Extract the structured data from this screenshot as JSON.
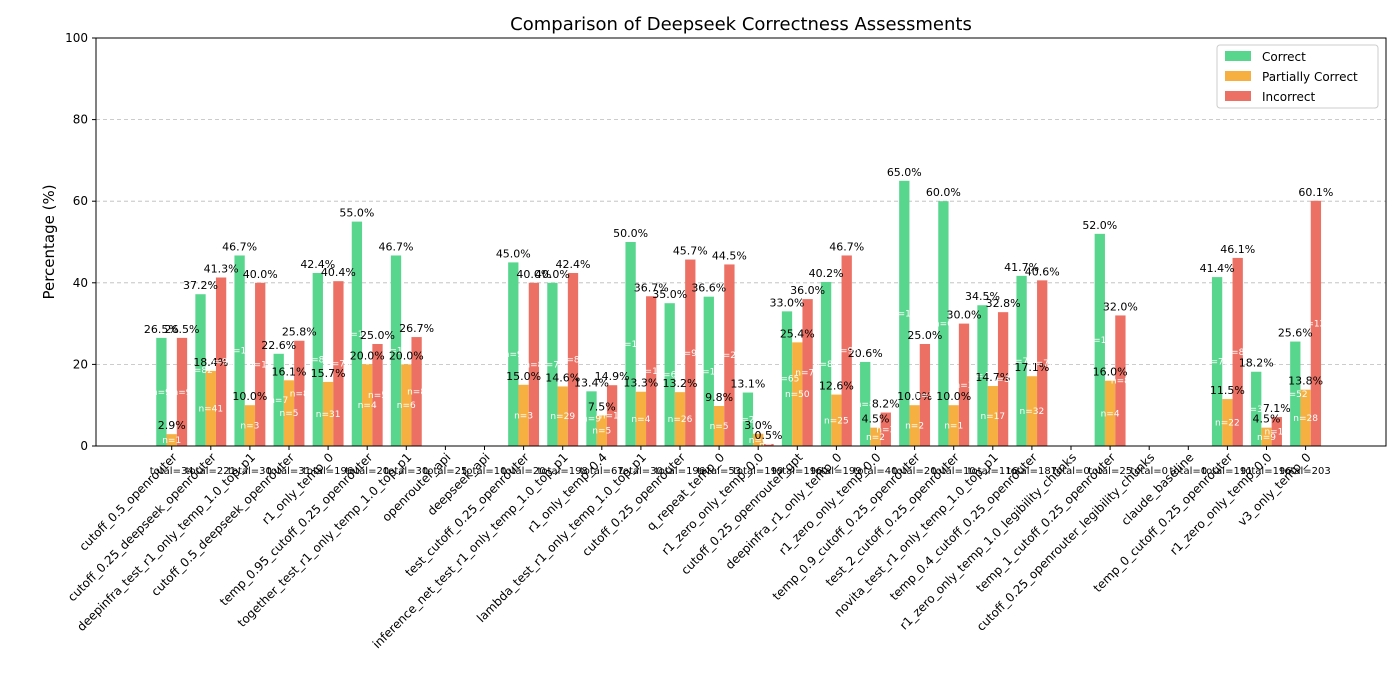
{
  "chart_data": {
    "type": "bar",
    "title": "Comparison of Deepseek Correctness Assessments",
    "xlabel": "",
    "ylabel": "Percentage (%)",
    "ylim": [
      0,
      100
    ],
    "yticks": [
      0,
      20,
      40,
      60,
      80,
      100
    ],
    "grid": true,
    "legend_position": "top-right",
    "colors": {
      "Correct": "#58d68d",
      "Partially Correct": "#f5b041",
      "Incorrect": "#ec7063"
    },
    "categories": [
      "cutoff_0.5_openrouter",
      "cutoff_0.25_deepseek_openrouter",
      "deepinfra_test_r1_only_temp_1.0_top_p1",
      "cutoff_0.5_deepseek_openrouter",
      "r1_only_temp_0",
      "temp_0.95_cutoff_0.25_openrouter",
      "together_test_r1_only_temp_1.0_top_p1",
      "openrouter_api",
      "deepseek_api",
      "test_cutoff_0.25_openrouter",
      "inference_net_test_r1_only_temp_1.0_top_p1",
      "r1_only_temp_0.4",
      "lambda_test_r1_only_temp_1.0_top_p1",
      "cutoff_0.25_openrouter",
      "q_repeat_temp_0",
      "r1_zero_only_temp_0.0",
      "cutoff_0.25_openrouter_gpt",
      "deepinfra_r1_only_temp_0",
      "r1_zero_only_temp_0.0",
      "temp_0.9_cutoff_0.25_openrouter",
      "test_2_cutoff_0.25_openrouter",
      "novita_test_r1_only_temp_1.0_top_p1",
      "temp_0.4_cutoff_0.25_openrouter",
      "r1_zero_only_temp_1.0_legibility_chunks",
      "temp_1_cutoff_0.25_openrouter",
      "cutoff_0.25_openrouter_legibility_chunks",
      "claude_baseline",
      "temp_0_cutoff_0.25_openrouter",
      "r1_zero_only_temp_0.0",
      "v3_only_temp_0"
    ],
    "totals": [
      "total=34",
      "total=221",
      "total=30",
      "total=31",
      "total=196",
      "total=20",
      "total=30",
      "total=25",
      "total=10",
      "total=20",
      "total=198",
      "total=67",
      "total=30",
      "total=196",
      "total=53",
      "total=199",
      "total=196",
      "total=199",
      "total=40",
      "total=20",
      "total=10",
      "total=116",
      "total=187",
      "total=0",
      "total=25",
      "total=0",
      "total=0",
      "total=191",
      "total=196",
      "total=203"
    ],
    "series": [
      {
        "name": "Correct",
        "values": [
          26.5,
          37.2,
          46.7,
          22.6,
          42.4,
          55.0,
          46.7,
          null,
          null,
          45.0,
          40.0,
          13.4,
          50.0,
          35.0,
          36.6,
          13.1,
          33.0,
          40.2,
          20.6,
          65.0,
          60.0,
          34.5,
          41.7,
          null,
          52.0,
          null,
          null,
          41.4,
          18.2,
          25.6
        ],
        "labels": [
          "26.5%",
          "37.2%",
          "46.7%",
          "22.6%",
          "42.4%",
          "55.0%",
          "46.7%",
          null,
          null,
          "45.0%",
          "40.0%",
          "13.4%",
          "50.0%",
          "35.0%",
          "36.6%",
          "13.1%",
          "33.0%",
          "40.2%",
          "20.6%",
          "65.0%",
          "60.0%",
          "34.5%",
          "41.7%",
          null,
          "52.0%",
          null,
          null,
          "41.4%",
          "18.2%",
          "25.6%"
        ],
        "n": [
          "n=9",
          "n=82",
          "n=14",
          "n=7",
          "n=83",
          "n=11",
          "n=14",
          null,
          null,
          "n=9",
          "n=79",
          "n=9",
          "n=15",
          "n=69",
          "n=19",
          "n=26",
          "n=65",
          "n=80",
          "n=8",
          "n=13",
          "n=6",
          "n=40",
          "n=78",
          null,
          "n=13",
          null,
          null,
          "n=79",
          "n=36",
          "n=52"
        ]
      },
      {
        "name": "Partially Correct",
        "values": [
          2.9,
          18.4,
          10.0,
          16.1,
          15.7,
          20.0,
          20.0,
          null,
          null,
          15.0,
          14.6,
          7.5,
          13.3,
          13.2,
          9.8,
          3.0,
          25.4,
          12.6,
          4.5,
          10.0,
          10.0,
          14.7,
          17.1,
          null,
          16.0,
          null,
          null,
          11.5,
          4.5,
          13.8
        ],
        "labels": [
          "2.9%",
          "18.4%",
          "10.0%",
          "16.1%",
          "15.7%",
          "20.0%",
          "20.0%",
          null,
          null,
          "15.0%",
          "14.6%",
          "7.5%",
          "13.3%",
          "13.2%",
          "9.8%",
          "3.0%",
          "25.4%",
          "12.6%",
          "4.5%",
          "10.0%",
          "10.0%",
          "14.7%",
          "17.1%",
          null,
          "16.0%",
          null,
          null,
          "11.5%",
          "4.5%",
          "13.8%"
        ],
        "n": [
          "n=1",
          "n=41",
          "n=3",
          "n=5",
          "n=31",
          "n=4",
          "n=6",
          null,
          null,
          "n=3",
          "n=29",
          "n=5",
          "n=4",
          "n=26",
          "n=5",
          "n=6",
          "n=50",
          "n=25",
          "n=2",
          "n=2",
          "n=1",
          "n=17",
          "n=32",
          null,
          "n=4",
          null,
          null,
          "n=22",
          "n=9",
          "n=28"
        ]
      },
      {
        "name": "Incorrect",
        "values": [
          26.5,
          41.3,
          40.0,
          25.8,
          40.4,
          25.0,
          26.7,
          null,
          null,
          40.0,
          42.4,
          14.9,
          36.7,
          45.7,
          44.5,
          0.5,
          36.0,
          46.7,
          8.2,
          25.0,
          30.0,
          32.8,
          40.6,
          null,
          32.0,
          null,
          null,
          46.1,
          7.1,
          60.1
        ],
        "labels": [
          "26.5%",
          "41.3%",
          "40.0%",
          "25.8%",
          "40.4%",
          "25.0%",
          "26.7%",
          null,
          null,
          "40.0%",
          "42.4%",
          "14.9%",
          "36.7%",
          "45.7%",
          "44.5%",
          "0.5%",
          "36.0%",
          "46.7%",
          "8.2%",
          "25.0%",
          "30.0%",
          "32.8%",
          "40.6%",
          null,
          "32.0%",
          null,
          null,
          "46.1%",
          "7.1%",
          "60.1%"
        ],
        "n": [
          "n=9",
          "n=91",
          "n=12",
          "n=8",
          "n=79",
          "n=5",
          "n=8",
          null,
          null,
          "n=8",
          "n=84",
          "n=10",
          "n=11",
          "n=90",
          "n=23",
          "n=1",
          "n=70",
          "n=93",
          "n=3",
          "n=5",
          "n=3",
          "n=38",
          "n=76",
          null,
          "n=8",
          null,
          null,
          "n=88",
          "n=14",
          "n=122"
        ]
      }
    ]
  }
}
